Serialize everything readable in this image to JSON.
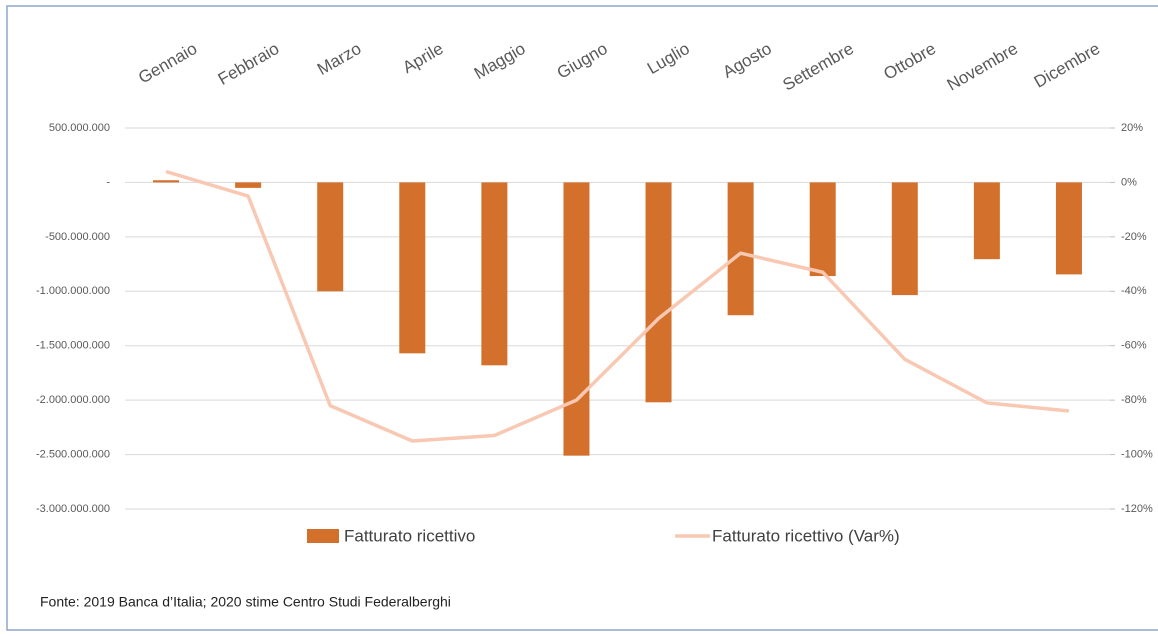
{
  "chart_data": {
    "type": "bar+line",
    "categories": [
      "Gennaio",
      "Febbraio",
      "Marzo",
      "Aprile",
      "Maggio",
      "Giugno",
      "Luglio",
      "Agosto",
      "Settembre",
      "Ottobre",
      "Novembre",
      "Dicembre"
    ],
    "series": [
      {
        "name": "Fatturato ricettivo",
        "type": "bar",
        "color": "#d2702c",
        "values": [
          20000000,
          -50000000,
          -1000000000,
          -1570000000,
          -1680000000,
          -2510000000,
          -2020000000,
          -1220000000,
          -860000000,
          -1035000000,
          -705000000,
          -845000000
        ]
      },
      {
        "name": "Fatturato ricettivo (Var%)",
        "type": "line",
        "axis": "y2",
        "color": "#f8c8b3",
        "values": [
          4,
          -5,
          -82,
          -95,
          -93,
          -80,
          -50,
          -26,
          -33,
          -65,
          -81,
          -84
        ]
      }
    ],
    "ylim": [
      -3000000000,
      500000000
    ],
    "yticks": [
      {
        "value": 500000000,
        "label": "500.000.000"
      },
      {
        "value": 0,
        "label": "-"
      },
      {
        "value": -500000000,
        "label": "-500.000.000"
      },
      {
        "value": -1000000000,
        "label": "-1.000.000.000"
      },
      {
        "value": -1500000000,
        "label": "-1.500.000.000"
      },
      {
        "value": -2000000000,
        "label": "-2.000.000.000"
      },
      {
        "value": -2500000000,
        "label": "-2.500.000.000"
      },
      {
        "value": -3000000000,
        "label": "-3.000.000.000"
      }
    ],
    "y2lim": [
      -120,
      20
    ],
    "y2ticks": [
      {
        "value": 20,
        "label": "20%"
      },
      {
        "value": 0,
        "label": "0%"
      },
      {
        "value": -20,
        "label": "-20%"
      },
      {
        "value": -40,
        "label": "-40%"
      },
      {
        "value": -60,
        "label": "-60%"
      },
      {
        "value": -80,
        "label": "-80%"
      },
      {
        "value": -100,
        "label": "-100%"
      },
      {
        "value": -120,
        "label": "-120%"
      }
    ],
    "grid": true,
    "legend": "bottom",
    "source": "Fonte: 2019 Banca d’Italia; 2020 stime Centro Studi Federalberghi"
  }
}
